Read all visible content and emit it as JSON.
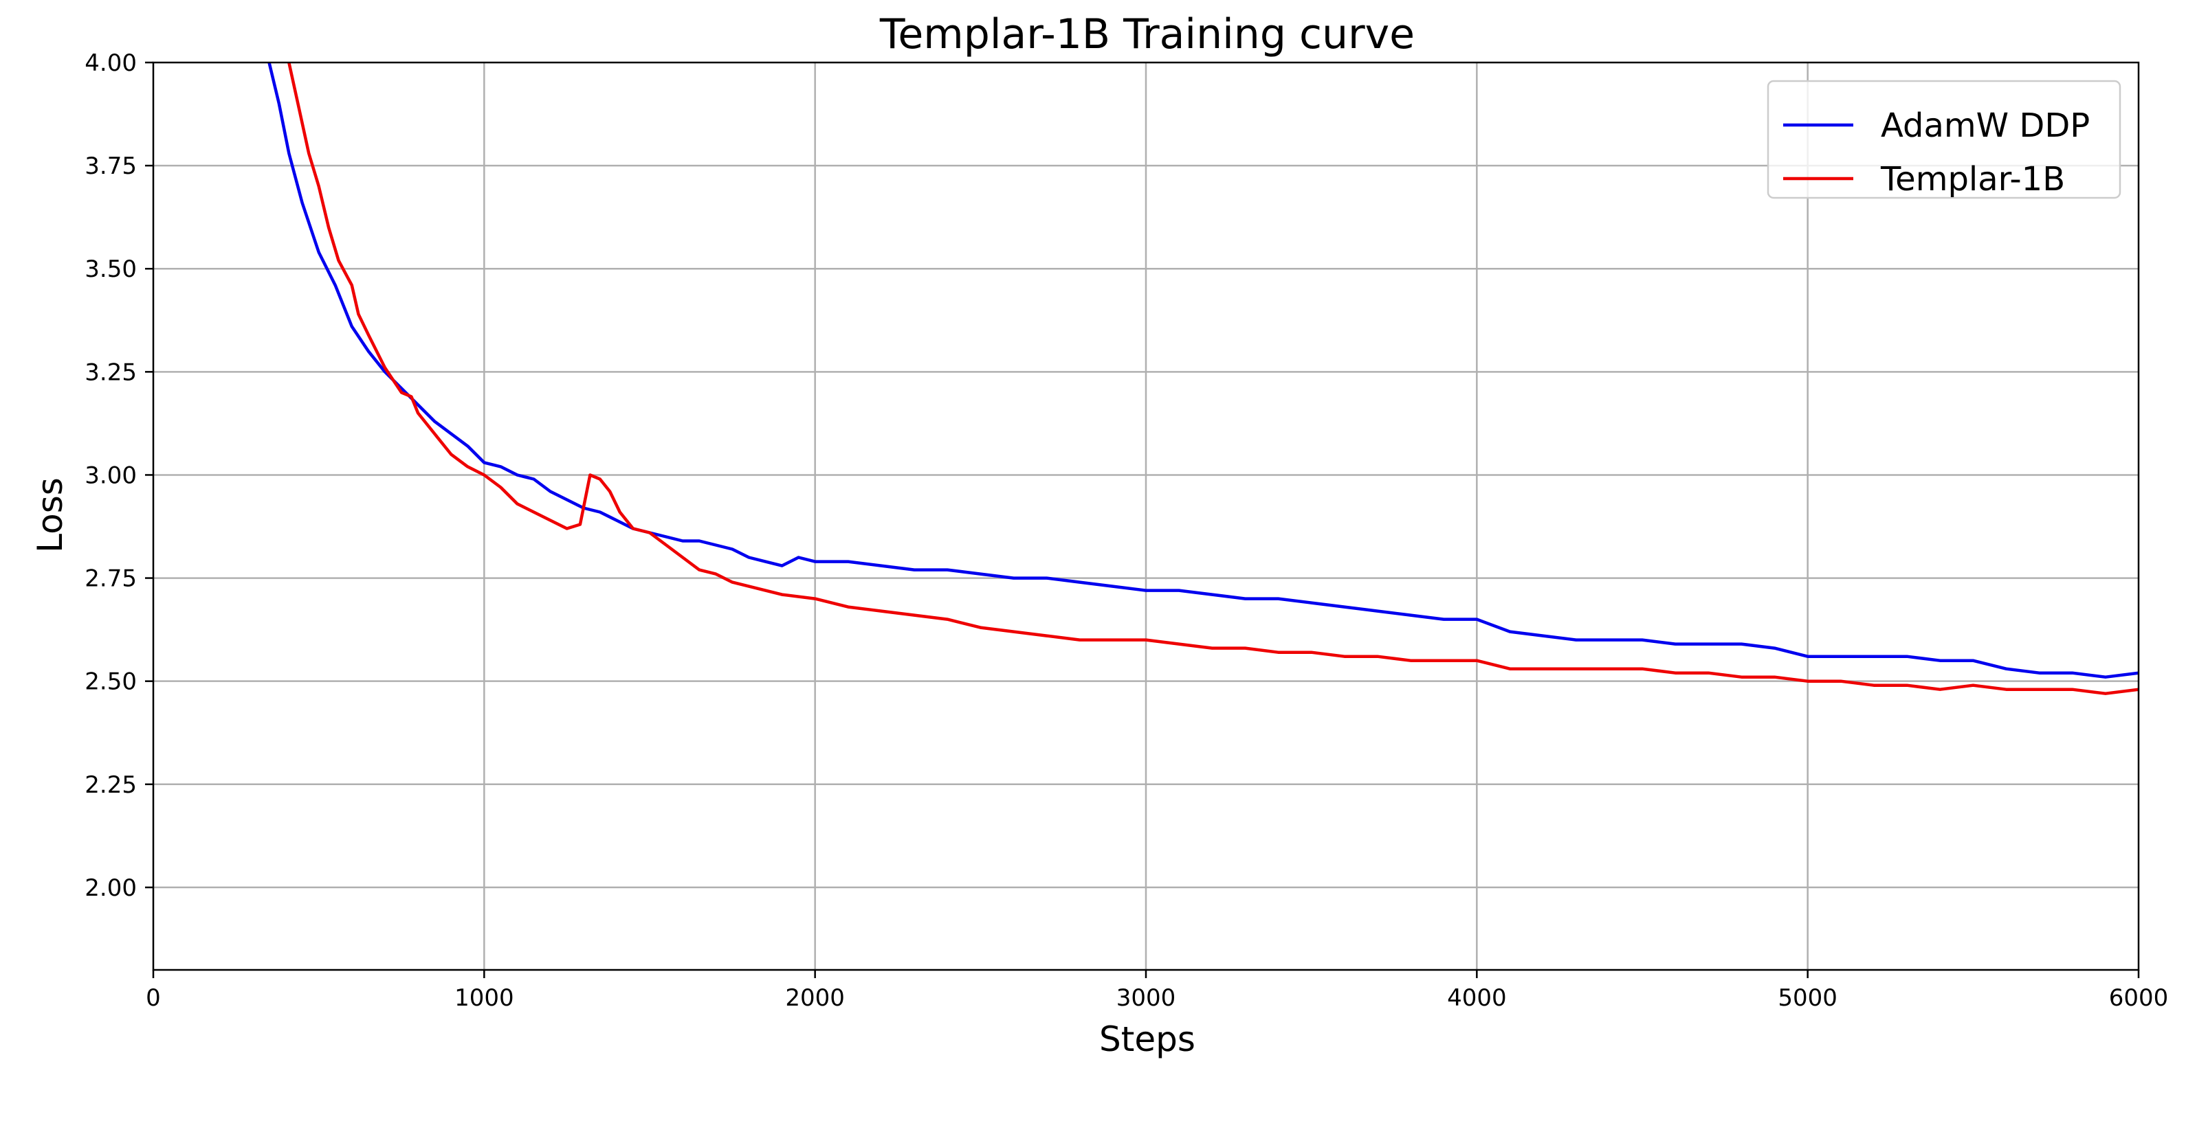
{
  "chart_data": {
    "type": "line",
    "title": "Templar-1B Training curve",
    "xlabel": "Steps",
    "ylabel": "Loss",
    "xlim": [
      0,
      6000
    ],
    "ylim": [
      1.8,
      4.0
    ],
    "x_ticks": [
      0,
      1000,
      2000,
      3000,
      4000,
      5000,
      6000
    ],
    "y_ticks": [
      2.0,
      2.25,
      2.5,
      2.75,
      3.0,
      3.25,
      3.5,
      3.75,
      4.0
    ],
    "x_tick_labels": [
      "0",
      "1000",
      "2000",
      "3000",
      "4000",
      "5000",
      "6000"
    ],
    "y_tick_labels": [
      "2.00",
      "2.25",
      "2.50",
      "2.75",
      "3.00",
      "3.25",
      "3.50",
      "3.75",
      "4.00"
    ],
    "grid": true,
    "legend_position": "top-right",
    "series": [
      {
        "name": "AdamW DDP",
        "color": "#0000ee",
        "points": [
          [
            350,
            4.0
          ],
          [
            380,
            3.9
          ],
          [
            410,
            3.78
          ],
          [
            450,
            3.66
          ],
          [
            500,
            3.54
          ],
          [
            550,
            3.46
          ],
          [
            600,
            3.36
          ],
          [
            650,
            3.3
          ],
          [
            700,
            3.25
          ],
          [
            750,
            3.21
          ],
          [
            800,
            3.17
          ],
          [
            850,
            3.13
          ],
          [
            900,
            3.1
          ],
          [
            950,
            3.07
          ],
          [
            1000,
            3.03
          ],
          [
            1050,
            3.02
          ],
          [
            1100,
            3.0
          ],
          [
            1150,
            2.99
          ],
          [
            1200,
            2.96
          ],
          [
            1250,
            2.94
          ],
          [
            1300,
            2.92
          ],
          [
            1350,
            2.91
          ],
          [
            1400,
            2.89
          ],
          [
            1450,
            2.87
          ],
          [
            1500,
            2.86
          ],
          [
            1550,
            2.85
          ],
          [
            1600,
            2.84
          ],
          [
            1650,
            2.84
          ],
          [
            1700,
            2.83
          ],
          [
            1750,
            2.82
          ],
          [
            1800,
            2.8
          ],
          [
            1850,
            2.79
          ],
          [
            1900,
            2.78
          ],
          [
            1950,
            2.8
          ],
          [
            2000,
            2.79
          ],
          [
            2100,
            2.79
          ],
          [
            2200,
            2.78
          ],
          [
            2300,
            2.77
          ],
          [
            2400,
            2.77
          ],
          [
            2500,
            2.76
          ],
          [
            2600,
            2.75
          ],
          [
            2700,
            2.75
          ],
          [
            2800,
            2.74
          ],
          [
            2900,
            2.73
          ],
          [
            3000,
            2.72
          ],
          [
            3100,
            2.72
          ],
          [
            3200,
            2.71
          ],
          [
            3300,
            2.7
          ],
          [
            3400,
            2.7
          ],
          [
            3500,
            2.69
          ],
          [
            3600,
            2.68
          ],
          [
            3700,
            2.67
          ],
          [
            3800,
            2.66
          ],
          [
            3900,
            2.65
          ],
          [
            4000,
            2.65
          ],
          [
            4100,
            2.62
          ],
          [
            4200,
            2.61
          ],
          [
            4300,
            2.6
          ],
          [
            4400,
            2.6
          ],
          [
            4500,
            2.6
          ],
          [
            4600,
            2.59
          ],
          [
            4700,
            2.59
          ],
          [
            4800,
            2.59
          ],
          [
            4900,
            2.58
          ],
          [
            5000,
            2.56
          ],
          [
            5100,
            2.56
          ],
          [
            5200,
            2.56
          ],
          [
            5300,
            2.56
          ],
          [
            5400,
            2.55
          ],
          [
            5500,
            2.55
          ],
          [
            5600,
            2.53
          ],
          [
            5700,
            2.52
          ],
          [
            5800,
            2.52
          ],
          [
            5900,
            2.51
          ],
          [
            6000,
            2.52
          ]
        ]
      },
      {
        "name": "Templar-1B",
        "color": "#ee0000",
        "points": [
          [
            410,
            4.0
          ],
          [
            440,
            3.89
          ],
          [
            470,
            3.78
          ],
          [
            500,
            3.7
          ],
          [
            530,
            3.6
          ],
          [
            560,
            3.52
          ],
          [
            600,
            3.46
          ],
          [
            620,
            3.39
          ],
          [
            650,
            3.34
          ],
          [
            700,
            3.26
          ],
          [
            750,
            3.2
          ],
          [
            780,
            3.19
          ],
          [
            800,
            3.15
          ],
          [
            850,
            3.1
          ],
          [
            900,
            3.05
          ],
          [
            950,
            3.02
          ],
          [
            1000,
            3.0
          ],
          [
            1050,
            2.97
          ],
          [
            1100,
            2.93
          ],
          [
            1150,
            2.91
          ],
          [
            1200,
            2.89
          ],
          [
            1250,
            2.87
          ],
          [
            1290,
            2.88
          ],
          [
            1320,
            3.0
          ],
          [
            1350,
            2.99
          ],
          [
            1380,
            2.96
          ],
          [
            1410,
            2.91
          ],
          [
            1450,
            2.87
          ],
          [
            1500,
            2.86
          ],
          [
            1550,
            2.83
          ],
          [
            1600,
            2.8
          ],
          [
            1650,
            2.77
          ],
          [
            1700,
            2.76
          ],
          [
            1750,
            2.74
          ],
          [
            1800,
            2.73
          ],
          [
            1900,
            2.71
          ],
          [
            2000,
            2.7
          ],
          [
            2100,
            2.68
          ],
          [
            2200,
            2.67
          ],
          [
            2300,
            2.66
          ],
          [
            2400,
            2.65
          ],
          [
            2500,
            2.63
          ],
          [
            2600,
            2.62
          ],
          [
            2700,
            2.61
          ],
          [
            2800,
            2.6
          ],
          [
            2900,
            2.6
          ],
          [
            3000,
            2.6
          ],
          [
            3100,
            2.59
          ],
          [
            3200,
            2.58
          ],
          [
            3300,
            2.58
          ],
          [
            3400,
            2.57
          ],
          [
            3500,
            2.57
          ],
          [
            3600,
            2.56
          ],
          [
            3700,
            2.56
          ],
          [
            3800,
            2.55
          ],
          [
            3900,
            2.55
          ],
          [
            4000,
            2.55
          ],
          [
            4100,
            2.53
          ],
          [
            4200,
            2.53
          ],
          [
            4300,
            2.53
          ],
          [
            4400,
            2.53
          ],
          [
            4500,
            2.53
          ],
          [
            4600,
            2.52
          ],
          [
            4700,
            2.52
          ],
          [
            4800,
            2.51
          ],
          [
            4900,
            2.51
          ],
          [
            5000,
            2.5
          ],
          [
            5100,
            2.5
          ],
          [
            5200,
            2.49
          ],
          [
            5300,
            2.49
          ],
          [
            5400,
            2.48
          ],
          [
            5500,
            2.49
          ],
          [
            5600,
            2.48
          ],
          [
            5700,
            2.48
          ],
          [
            5800,
            2.48
          ],
          [
            5900,
            2.47
          ],
          [
            6000,
            2.48
          ]
        ]
      }
    ]
  }
}
